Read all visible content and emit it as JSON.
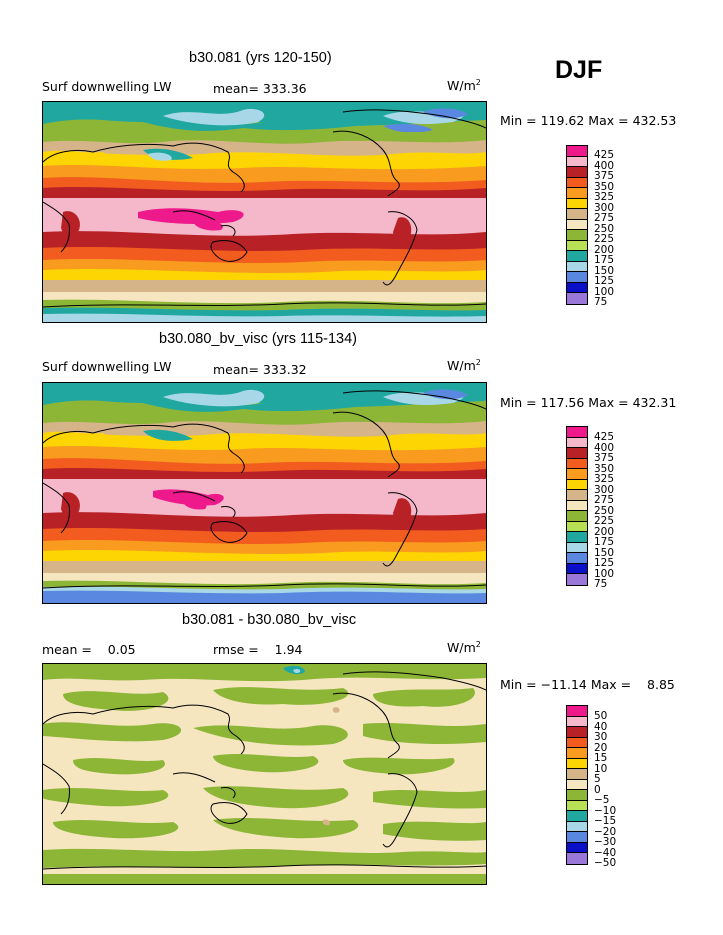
{
  "season": "DJF",
  "panels": [
    {
      "title": "b30.081 (yrs 120-150)",
      "variable": "Surf downwelling LW",
      "stat_text": "mean= 333.36",
      "units": "W/m",
      "units_exp": "2",
      "minmax": "Min = 119.62 Max = 432.53",
      "levels": [
        "425",
        "400",
        "375",
        "350",
        "325",
        "300",
        "275",
        "250",
        "225",
        "200",
        "175",
        "150",
        "125",
        "100",
        "75"
      ]
    },
    {
      "title": "b30.080_bv_visc (yrs 115-134)",
      "variable": "Surf downwelling LW",
      "stat_text": "mean= 333.32",
      "units": "W/m",
      "units_exp": "2",
      "minmax": "Min = 117.56 Max = 432.31",
      "levels": [
        "425",
        "400",
        "375",
        "350",
        "325",
        "300",
        "275",
        "250",
        "225",
        "200",
        "175",
        "150",
        "125",
        "100",
        "75"
      ]
    },
    {
      "title": "b30.081 - b30.080_bv_visc",
      "mean_text": "mean =    0.05",
      "rmse_text": "rmse =    1.94",
      "units": "W/m",
      "units_exp": "2",
      "minmax": "Min = −11.14 Max =    8.85",
      "levels": [
        "50",
        "40",
        "30",
        "20",
        "15",
        "10",
        "5",
        "0",
        "−5",
        "−10",
        "−15",
        "−20",
        "−30",
        "−40",
        "−50"
      ]
    }
  ],
  "palette": [
    "#ee1a8c",
    "#f5b8cb",
    "#b82126",
    "#f25c1e",
    "#f89b1e",
    "#fdd503",
    "#d6b48a",
    "#f5e6c0",
    "#8db637",
    "#b8e055",
    "#20a8a0",
    "#a8d8e8",
    "#5a88e0",
    "#0a10c8",
    "#9a78d8"
  ]
}
